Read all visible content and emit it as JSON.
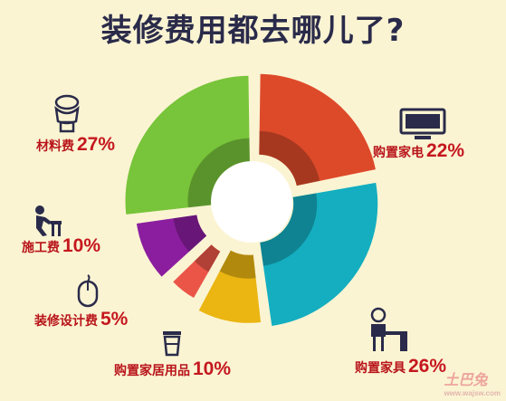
{
  "chart_data": {
    "type": "pie",
    "style": "donut, exploded slices",
    "title": "装修费用都去哪儿了?",
    "slices": [
      {
        "label": "购置家电",
        "value": 22,
        "display": "22%",
        "color": "#dd4a2a",
        "icon": "tv-icon"
      },
      {
        "label": "购置家具",
        "value": 26,
        "display": "26%",
        "color": "#14aec0",
        "icon": "desk-chair-icon"
      },
      {
        "label": "购置家居用品",
        "value": 10,
        "display": "10%",
        "color": "#ebb512",
        "icon": "cup-icon"
      },
      {
        "label": "装修设计费",
        "value": 5,
        "display": "5%",
        "color": "#ea5548",
        "icon": "mouse-icon"
      },
      {
        "label": "施工费",
        "value": 10,
        "display": "10%",
        "color": "#8b1e9e",
        "icon": "worker-icon"
      },
      {
        "label": "材料费",
        "value": 27,
        "display": "27%",
        "color": "#78c43a",
        "icon": "toilet-icon"
      }
    ]
  },
  "watermark": {
    "text": "土巴兔",
    "sub": "www.wajsw.com"
  }
}
